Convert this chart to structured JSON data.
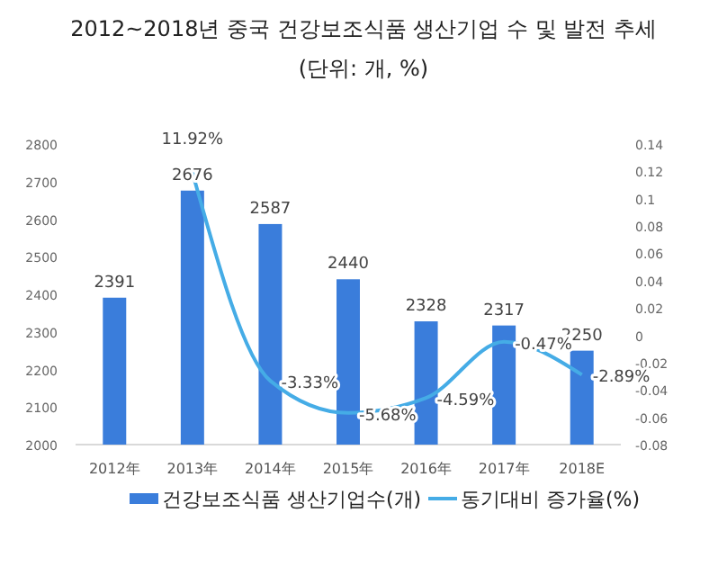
{
  "chart_data": {
    "type": "bar",
    "title": "2012~2018년 중국 건강보조식품 생산기업 수 및 발전 추세",
    "subtitle": "(단위: 개, %)",
    "categories": [
      "2012年",
      "2013年",
      "2014年",
      "2015年",
      "2016年",
      "2017年",
      "2018E"
    ],
    "series": [
      {
        "name": "건강보조식품 생산기업수(개)",
        "color": "#3a7ddb",
        "values": [
          2391,
          2676,
          2587,
          2440,
          2328,
          2317,
          2250
        ],
        "value_labels": [
          "2391",
          "2676",
          "2587",
          "2440",
          "2328",
          "2317",
          "2250"
        ]
      },
      {
        "name": "동기대비 증가율(%)",
        "type": "line",
        "axis": "y2",
        "color": "#45ace6",
        "values": [
          null,
          0.1192,
          -0.0333,
          -0.0568,
          -0.0459,
          -0.0047,
          -0.0289
        ],
        "value_labels": [
          null,
          "11.92%",
          "-3.33%",
          "-5.68%",
          "-4.59%",
          "-0.47%",
          "-2.89%"
        ]
      }
    ],
    "ylim": [
      2000,
      2800
    ],
    "yticks": [
      2000,
      2100,
      2200,
      2300,
      2400,
      2500,
      2600,
      2700,
      2800
    ],
    "y2lim": [
      -0.08,
      0.14
    ],
    "y2ticks": [
      -0.08,
      -0.06,
      -0.04,
      -0.02,
      0,
      0.02,
      0.04,
      0.06,
      0.08,
      0.1,
      0.12,
      0.14
    ],
    "grid": false,
    "legend": "bottom",
    "marker": "none",
    "line_style": "solid"
  }
}
